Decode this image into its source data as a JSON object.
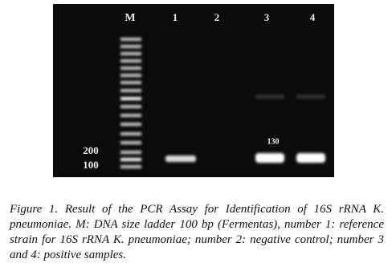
{
  "figure": {
    "lane_labels": [
      "M",
      "1",
      "2",
      "3",
      "4"
    ],
    "marker_labels": [
      "200",
      "100"
    ],
    "band_label": "130",
    "caption": {
      "label": "Figure 1.",
      "text": "Result of the PCR Assay for Identification of 16S rRNA K. pneumoniae. M: DNA size ladder 100 bp (Fermentas), number 1: reference strain for 16S rRNA K. pneumoniae; number 2: negative control; number 3 and 4: positive samples."
    }
  }
}
